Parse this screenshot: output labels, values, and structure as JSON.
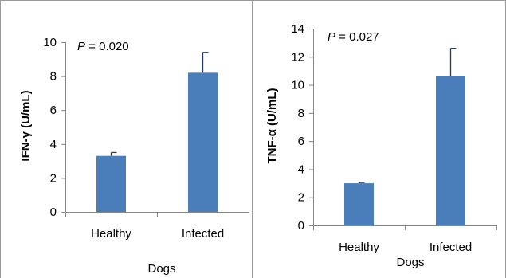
{
  "chart_data": [
    {
      "type": "bar",
      "categories": [
        "Healthy",
        "Infected"
      ],
      "values": [
        3.3,
        8.2
      ],
      "error": [
        0.2,
        1.2
      ],
      "ylim": [
        0,
        10
      ],
      "yticks": [
        "0",
        "2",
        "4",
        "6",
        "8",
        "10"
      ],
      "ylabel": "IFN-γ (U/mL)",
      "xlabel": "Dogs",
      "annotation": {
        "p_symbol": "P",
        "p_text": " = 0.020"
      },
      "bar_color": "#4a7ebb",
      "error_color": "#1f3b66",
      "grid": false
    },
    {
      "type": "bar",
      "categories": [
        "Healthy",
        "Infected"
      ],
      "values": [
        3.0,
        10.6
      ],
      "error": [
        0.05,
        2.0
      ],
      "ylim": [
        0,
        14
      ],
      "yticks": [
        "0",
        "2",
        "4",
        "6",
        "8",
        "10",
        "12",
        "14"
      ],
      "ylabel": "TNF-α (U/mL)",
      "xlabel": "Dogs",
      "annotation": {
        "p_symbol": "P",
        "p_text": " = 0.027"
      },
      "bar_color": "#4a7ebb",
      "error_color": "#1f3b66",
      "grid": false
    }
  ]
}
